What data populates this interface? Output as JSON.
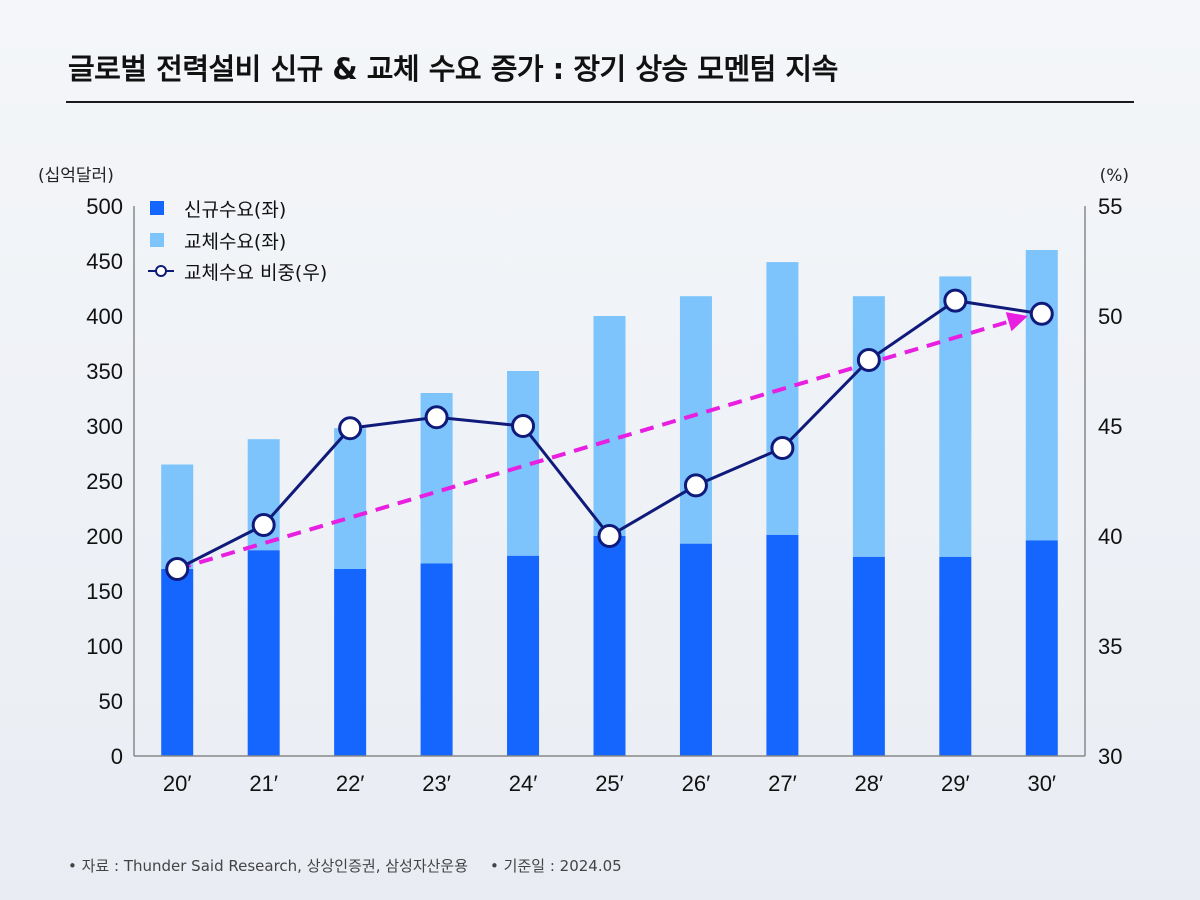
{
  "title": "글로벌 전력설비 신규 & 교체 수요 증가 : 장기 상승 모멘텀 지속",
  "footer": {
    "source": "자료 : Thunder Said Research, 상상인증권, 삼성자산운용",
    "date": "기준일 : 2024.05"
  },
  "colors": {
    "new_demand": "#1565ff",
    "replacement_demand": "#7cc4fb",
    "share_line": "#0f1a7a",
    "trend_arrow": "#e81ee0",
    "axis": "#888888"
  },
  "chart_data": {
    "type": "bar",
    "stacked": true,
    "title": "글로벌 전력설비 신규 & 교체 수요 증가 : 장기 상승 모멘텀 지속",
    "categories": [
      "20′",
      "21′",
      "22′",
      "23′",
      "24′",
      "25′",
      "26′",
      "27′",
      "28′",
      "29′",
      "30′"
    ],
    "y_left": {
      "label": "(십억달러)",
      "lim": [
        0,
        500
      ],
      "ticks": [
        0,
        50,
        100,
        150,
        200,
        250,
        300,
        350,
        400,
        450,
        500
      ]
    },
    "y_right": {
      "label": "(%)",
      "lim": [
        30,
        55
      ],
      "ticks": [
        30,
        35,
        40,
        45,
        50,
        55
      ]
    },
    "series": [
      {
        "name": "신규수요(좌)",
        "axis": "left",
        "kind": "bar",
        "values": [
          170,
          187,
          170,
          175,
          182,
          200,
          193,
          201,
          181,
          181,
          196
        ]
      },
      {
        "name": "교체수요(좌)",
        "axis": "left",
        "kind": "bar",
        "values": [
          95,
          101,
          128,
          155,
          168,
          200,
          225,
          248,
          237,
          255,
          264
        ]
      },
      {
        "name": "교체수요 비중(우)",
        "axis": "right",
        "kind": "line",
        "values": [
          38.5,
          40.5,
          44.9,
          45.4,
          45.0,
          40.0,
          42.3,
          44.0,
          48.0,
          50.7,
          50.1
        ]
      }
    ],
    "trend_arrow": {
      "from_category": "20′",
      "from_value": 38.5,
      "to_category": "30′",
      "to_value": 50.0,
      "axis": "right",
      "style": "dashed"
    },
    "legend": [
      "신규수요(좌)",
      "교체수요(좌)",
      "교체수요 비중(우)"
    ],
    "legend_position": "top-left"
  }
}
